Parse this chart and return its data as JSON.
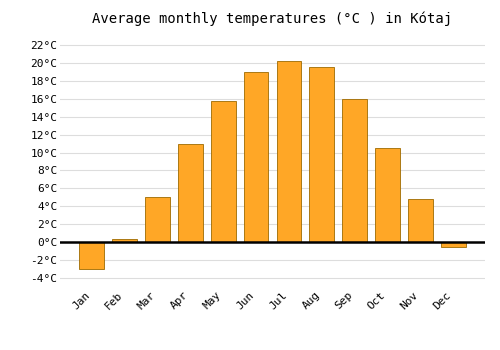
{
  "title": "Average monthly temperatures (°C ) in Kótaj",
  "months": [
    "Jan",
    "Feb",
    "Mar",
    "Apr",
    "May",
    "Jun",
    "Jul",
    "Aug",
    "Sep",
    "Oct",
    "Nov",
    "Dec"
  ],
  "values": [
    -3.0,
    0.3,
    5.0,
    11.0,
    15.7,
    19.0,
    20.2,
    19.5,
    16.0,
    10.5,
    4.8,
    -0.5
  ],
  "bar_color": "#FFA726",
  "bar_edge_color": "#9E6A00",
  "background_color": "#ffffff",
  "grid_color": "#dddddd",
  "zero_line_color": "#000000",
  "ylim": [
    -5.0,
    23.5
  ],
  "yticks": [
    -4,
    -2,
    0,
    2,
    4,
    6,
    8,
    10,
    12,
    14,
    16,
    18,
    20,
    22
  ],
  "title_fontsize": 10,
  "tick_fontsize": 8,
  "font_family": "monospace",
  "bar_width": 0.75
}
